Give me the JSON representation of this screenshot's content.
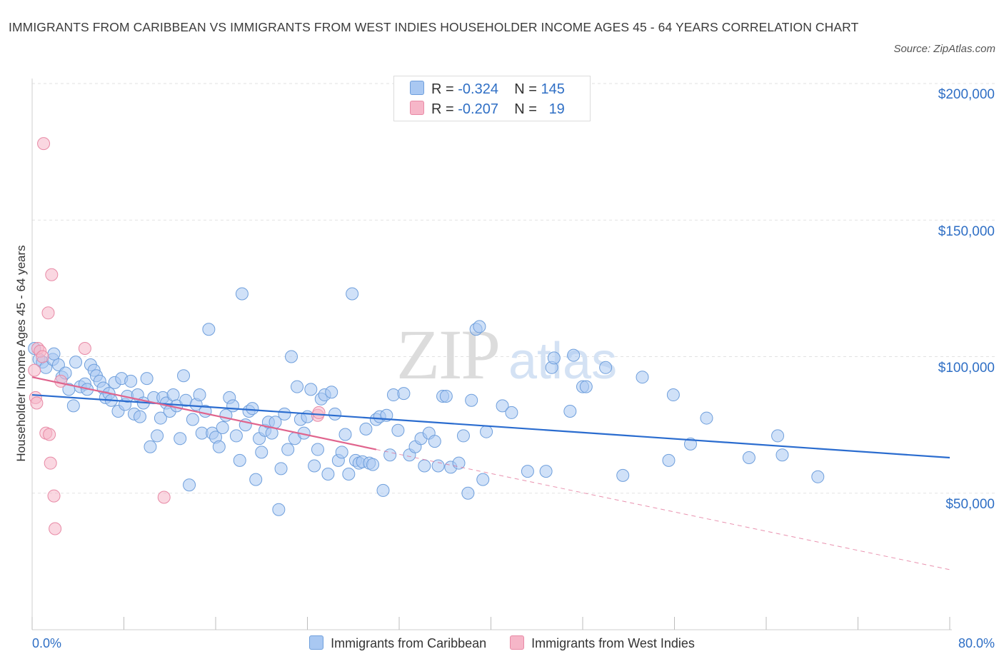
{
  "header": {
    "title": "IMMIGRANTS FROM CARIBBEAN VS IMMIGRANTS FROM WEST INDIES HOUSEHOLDER INCOME AGES 45 - 64 YEARS CORRELATION CHART",
    "source": "Source: ZipAtlas.com"
  },
  "legend_top": {
    "rows": [
      {
        "r_label": "R =",
        "r_value": "-0.324",
        "n_label": "N =",
        "n_value": "145",
        "color": "#a9c8f2"
      },
      {
        "r_label": "R =",
        "r_value": "-0.207",
        "n_label": "N =",
        "n_value": "19",
        "color": "#f6b6c8"
      }
    ]
  },
  "watermark": {
    "zip": "ZIP",
    "atlas": "atlas"
  },
  "chart_data": {
    "type": "scatter",
    "xlabel": "",
    "ylabel": "Householder Income Ages 45 - 64 years",
    "xlim": [
      0,
      80
    ],
    "ylim": [
      0,
      210000
    ],
    "x_tick_labels": [
      "0.0%",
      "80.0%"
    ],
    "y_tick_labels": [
      "$200,000",
      "$150,000",
      "$100,000",
      "$50,000"
    ],
    "y_ticks": [
      200000,
      150000,
      100000,
      50000
    ],
    "grid": "horizontal dashed",
    "legend_position": "bottom",
    "series": [
      {
        "name": "Immigrants from Caribbean",
        "color": "#a9c8f2",
        "stroke": "#6f9fdc",
        "trend_color": "#2a6ccf",
        "trend": {
          "x": [
            0,
            80
          ],
          "y": [
            86000,
            63000
          ]
        },
        "points": [
          [
            0.2,
            103000
          ],
          [
            0.6,
            99000
          ],
          [
            0.9,
            98000
          ],
          [
            1.2,
            96000
          ],
          [
            1.8,
            99000
          ],
          [
            2.3,
            97000
          ],
          [
            1.9,
            101000
          ],
          [
            2.6,
            92500
          ],
          [
            3.2,
            88000
          ],
          [
            2.9,
            94000
          ],
          [
            3.6,
            82000
          ],
          [
            3.8,
            98000
          ],
          [
            4.2,
            89000
          ],
          [
            4.6,
            90000
          ],
          [
            4.8,
            88000
          ],
          [
            5.1,
            97000
          ],
          [
            5.4,
            95000
          ],
          [
            5.6,
            93000
          ],
          [
            5.9,
            91000
          ],
          [
            6.2,
            88500
          ],
          [
            6.4,
            85000
          ],
          [
            6.7,
            86500
          ],
          [
            6.9,
            84000
          ],
          [
            7.2,
            90500
          ],
          [
            7.5,
            80000
          ],
          [
            7.8,
            92000
          ],
          [
            8.1,
            82500
          ],
          [
            8.3,
            85500
          ],
          [
            8.6,
            91000
          ],
          [
            8.9,
            79000
          ],
          [
            9.2,
            86000
          ],
          [
            9.4,
            78000
          ],
          [
            9.7,
            83000
          ],
          [
            10.0,
            92000
          ],
          [
            10.3,
            67000
          ],
          [
            10.6,
            85000
          ],
          [
            10.9,
            71000
          ],
          [
            11.2,
            77500
          ],
          [
            11.4,
            85000
          ],
          [
            11.7,
            83000
          ],
          [
            12.0,
            80000
          ],
          [
            12.3,
            86000
          ],
          [
            12.6,
            82000
          ],
          [
            12.9,
            70000
          ],
          [
            13.2,
            93000
          ],
          [
            13.4,
            84000
          ],
          [
            13.7,
            53000
          ],
          [
            14.0,
            77000
          ],
          [
            14.3,
            82500
          ],
          [
            14.6,
            86000
          ],
          [
            14.8,
            72000
          ],
          [
            15.1,
            80000
          ],
          [
            15.4,
            110000
          ],
          [
            15.7,
            72000
          ],
          [
            16.0,
            70500
          ],
          [
            16.3,
            67000
          ],
          [
            16.6,
            74000
          ],
          [
            16.9,
            78500
          ],
          [
            17.2,
            85000
          ],
          [
            17.5,
            82000
          ],
          [
            17.8,
            71000
          ],
          [
            18.1,
            62000
          ],
          [
            18.3,
            123000
          ],
          [
            18.6,
            75000
          ],
          [
            18.9,
            80000
          ],
          [
            19.2,
            81000
          ],
          [
            19.5,
            55000
          ],
          [
            19.8,
            70000
          ],
          [
            20.0,
            65000
          ],
          [
            20.3,
            73000
          ],
          [
            20.6,
            76000
          ],
          [
            20.9,
            72000
          ],
          [
            21.2,
            76000
          ],
          [
            21.5,
            44000
          ],
          [
            21.7,
            59000
          ],
          [
            22.0,
            79000
          ],
          [
            22.3,
            66000
          ],
          [
            22.6,
            100000
          ],
          [
            22.9,
            70000
          ],
          [
            23.1,
            89000
          ],
          [
            23.4,
            77000
          ],
          [
            23.7,
            72000
          ],
          [
            24.0,
            78000
          ],
          [
            24.3,
            88000
          ],
          [
            24.6,
            60000
          ],
          [
            24.9,
            66000
          ],
          [
            25.2,
            84500
          ],
          [
            25.5,
            86000
          ],
          [
            25.8,
            57000
          ],
          [
            26.1,
            87000
          ],
          [
            26.4,
            79000
          ],
          [
            26.7,
            62000
          ],
          [
            27.0,
            65000
          ],
          [
            27.3,
            71500
          ],
          [
            27.6,
            57000
          ],
          [
            27.9,
            123000
          ],
          [
            28.2,
            62000
          ],
          [
            28.5,
            61000
          ],
          [
            28.8,
            61500
          ],
          [
            29.1,
            73500
          ],
          [
            29.4,
            61000
          ],
          [
            29.7,
            60500
          ],
          [
            30.0,
            77000
          ],
          [
            30.3,
            78000
          ],
          [
            30.6,
            51000
          ],
          [
            30.9,
            78500
          ],
          [
            31.2,
            64000
          ],
          [
            31.5,
            86000
          ],
          [
            31.9,
            73000
          ],
          [
            32.4,
            86500
          ],
          [
            32.9,
            64000
          ],
          [
            33.4,
            67000
          ],
          [
            33.9,
            70000
          ],
          [
            34.2,
            60000
          ],
          [
            34.6,
            72000
          ],
          [
            35.1,
            69000
          ],
          [
            35.4,
            60000
          ],
          [
            35.8,
            85500
          ],
          [
            36.1,
            85500
          ],
          [
            36.5,
            59500
          ],
          [
            37.2,
            61000
          ],
          [
            37.6,
            71000
          ],
          [
            38.0,
            50000
          ],
          [
            38.3,
            84000
          ],
          [
            38.7,
            110000
          ],
          [
            39.0,
            111000
          ],
          [
            39.3,
            55000
          ],
          [
            39.6,
            72500
          ],
          [
            41.0,
            82000
          ],
          [
            41.8,
            79500
          ],
          [
            43.2,
            58000
          ],
          [
            44.8,
            58000
          ],
          [
            45.3,
            96000
          ],
          [
            45.5,
            99500
          ],
          [
            46.9,
            80000
          ],
          [
            47.2,
            100500
          ],
          [
            48.0,
            89000
          ],
          [
            48.3,
            89000
          ],
          [
            50.0,
            96000
          ],
          [
            51.5,
            56500
          ],
          [
            53.2,
            92500
          ],
          [
            55.5,
            62000
          ],
          [
            55.9,
            86000
          ],
          [
            57.4,
            68000
          ],
          [
            58.8,
            77500
          ],
          [
            62.5,
            63000
          ],
          [
            65.0,
            71000
          ],
          [
            65.4,
            64000
          ],
          [
            68.5,
            56000
          ]
        ]
      },
      {
        "name": "Immigrants from West Indies",
        "color": "#f6b6c8",
        "stroke": "#e88aa6",
        "trend_color": "#e0648d",
        "trend": {
          "x": [
            0,
            30
          ],
          "y": [
            92500,
            66000
          ]
        },
        "trend_extension": {
          "x": [
            30,
            80
          ],
          "y": [
            66000,
            22000
          ]
        },
        "points": [
          [
            0.2,
            95000
          ],
          [
            0.3,
            85000
          ],
          [
            0.4,
            83000
          ],
          [
            0.5,
            103000
          ],
          [
            0.7,
            102000
          ],
          [
            0.9,
            100000
          ],
          [
            1.0,
            178000
          ],
          [
            1.2,
            72000
          ],
          [
            1.5,
            71500
          ],
          [
            1.6,
            61000
          ],
          [
            1.7,
            130000
          ],
          [
            1.4,
            116000
          ],
          [
            1.9,
            49000
          ],
          [
            2.0,
            37000
          ],
          [
            2.5,
            91000
          ],
          [
            4.6,
            103000
          ],
          [
            11.5,
            48500
          ],
          [
            24.9,
            78500
          ],
          [
            25.0,
            79500
          ]
        ]
      }
    ]
  }
}
